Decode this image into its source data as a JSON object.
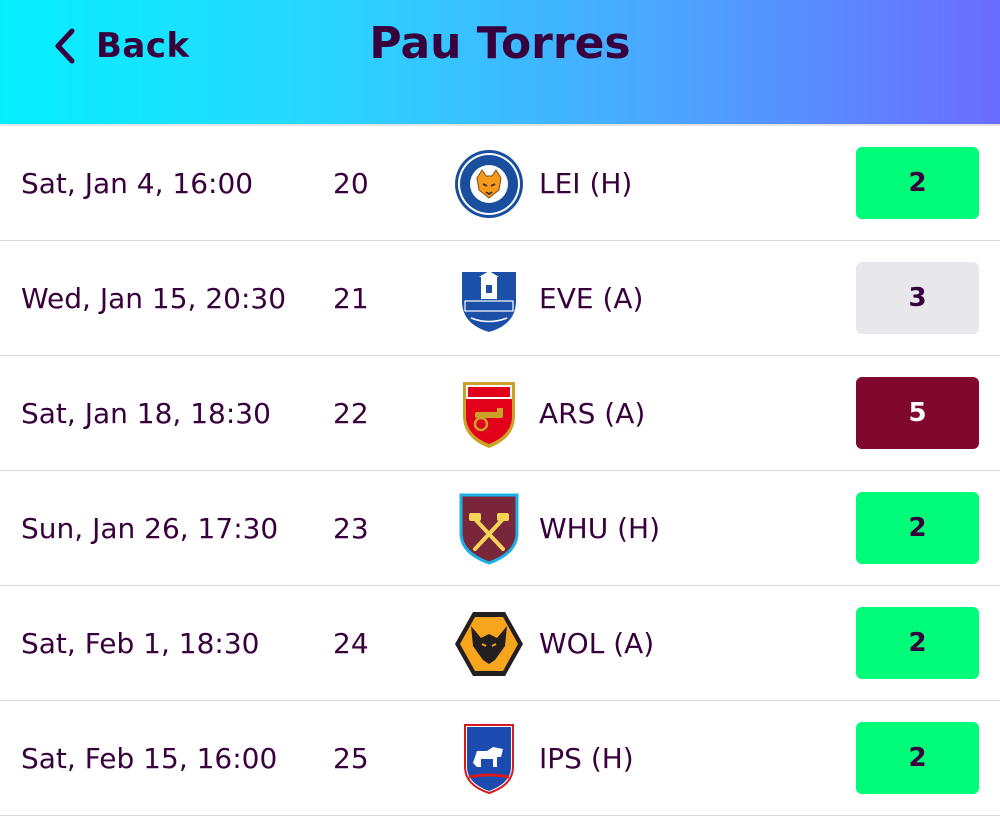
{
  "header": {
    "back_label": "Back",
    "title": "Pau Torres"
  },
  "colors": {
    "primary_text": "#38003c",
    "fdr_2_bg": "#01fc7a",
    "fdr_2_text": "#38003c",
    "fdr_3_bg": "#e7e7ec",
    "fdr_3_text": "#38003c",
    "fdr_5_bg": "#80072d",
    "fdr_5_text": "#ffffff"
  },
  "fixtures": [
    {
      "date": "Sat, Jan 4, 16:00",
      "gameweek": "20",
      "opponent": "LEI (H)",
      "badge_icon": "leicester-city-crest-icon",
      "difficulty": "2"
    },
    {
      "date": "Wed, Jan 15, 20:30",
      "gameweek": "21",
      "opponent": "EVE (A)",
      "badge_icon": "everton-crest-icon",
      "difficulty": "3"
    },
    {
      "date": "Sat, Jan 18, 18:30",
      "gameweek": "22",
      "opponent": "ARS (A)",
      "badge_icon": "arsenal-crest-icon",
      "difficulty": "5"
    },
    {
      "date": "Sun, Jan 26, 17:30",
      "gameweek": "23",
      "opponent": "WHU (H)",
      "badge_icon": "west-ham-crest-icon",
      "difficulty": "2"
    },
    {
      "date": "Sat, Feb 1, 18:30",
      "gameweek": "24",
      "opponent": "WOL (A)",
      "badge_icon": "wolves-crest-icon",
      "difficulty": "2"
    },
    {
      "date": "Sat, Feb 15, 16:00",
      "gameweek": "25",
      "opponent": "IPS (H)",
      "badge_icon": "ipswich-crest-icon",
      "difficulty": "2"
    }
  ]
}
